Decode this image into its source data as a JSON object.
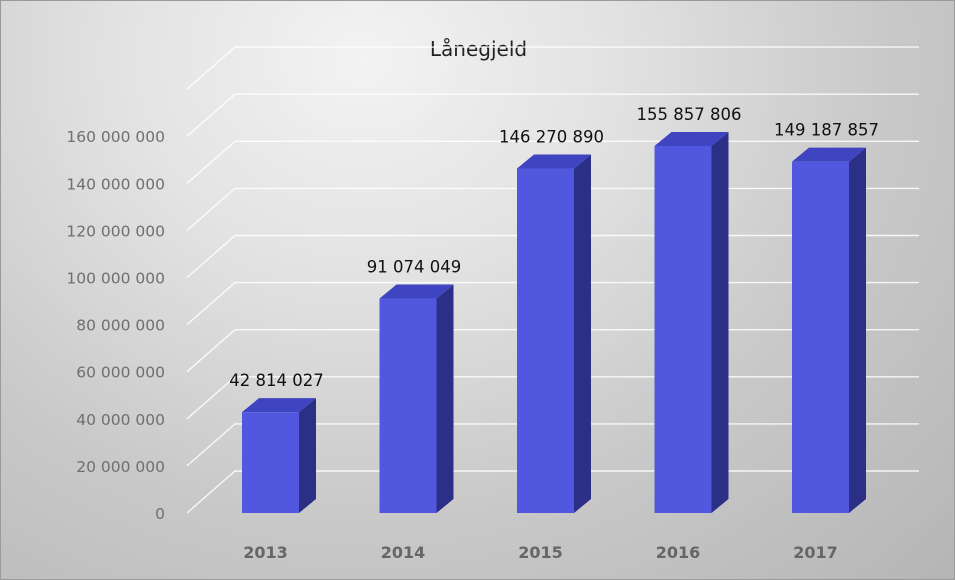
{
  "chart_data": {
    "type": "bar",
    "title": "Lånegjeld",
    "xlabel": "",
    "ylabel": "",
    "categories": [
      "2013",
      "2014",
      "2015",
      "2016",
      "2017"
    ],
    "values": [
      42814027,
      91074049,
      146270890,
      155857806,
      149187857
    ],
    "value_labels": [
      "42 814 027",
      "91 074 049",
      "146 270 890",
      "155 857 806",
      "149 187 857"
    ],
    "yticks": [
      0,
      20000000,
      40000000,
      60000000,
      80000000,
      100000000,
      120000000,
      140000000,
      160000000
    ],
    "ytick_labels": [
      "0",
      "20 000 000",
      "40 000 000",
      "60 000 000",
      "80 000 000",
      "100 000 000",
      "120 000 000",
      "140 000 000",
      "160 000 000"
    ],
    "ylim": [
      0,
      180000000
    ],
    "grid": true,
    "legend": "none",
    "style": "3d-column",
    "colors": {
      "bar_front": "#5157de",
      "bar_side": "#2c2f86",
      "bar_top": "#3f44c0",
      "gridline": "#ffffff"
    }
  }
}
